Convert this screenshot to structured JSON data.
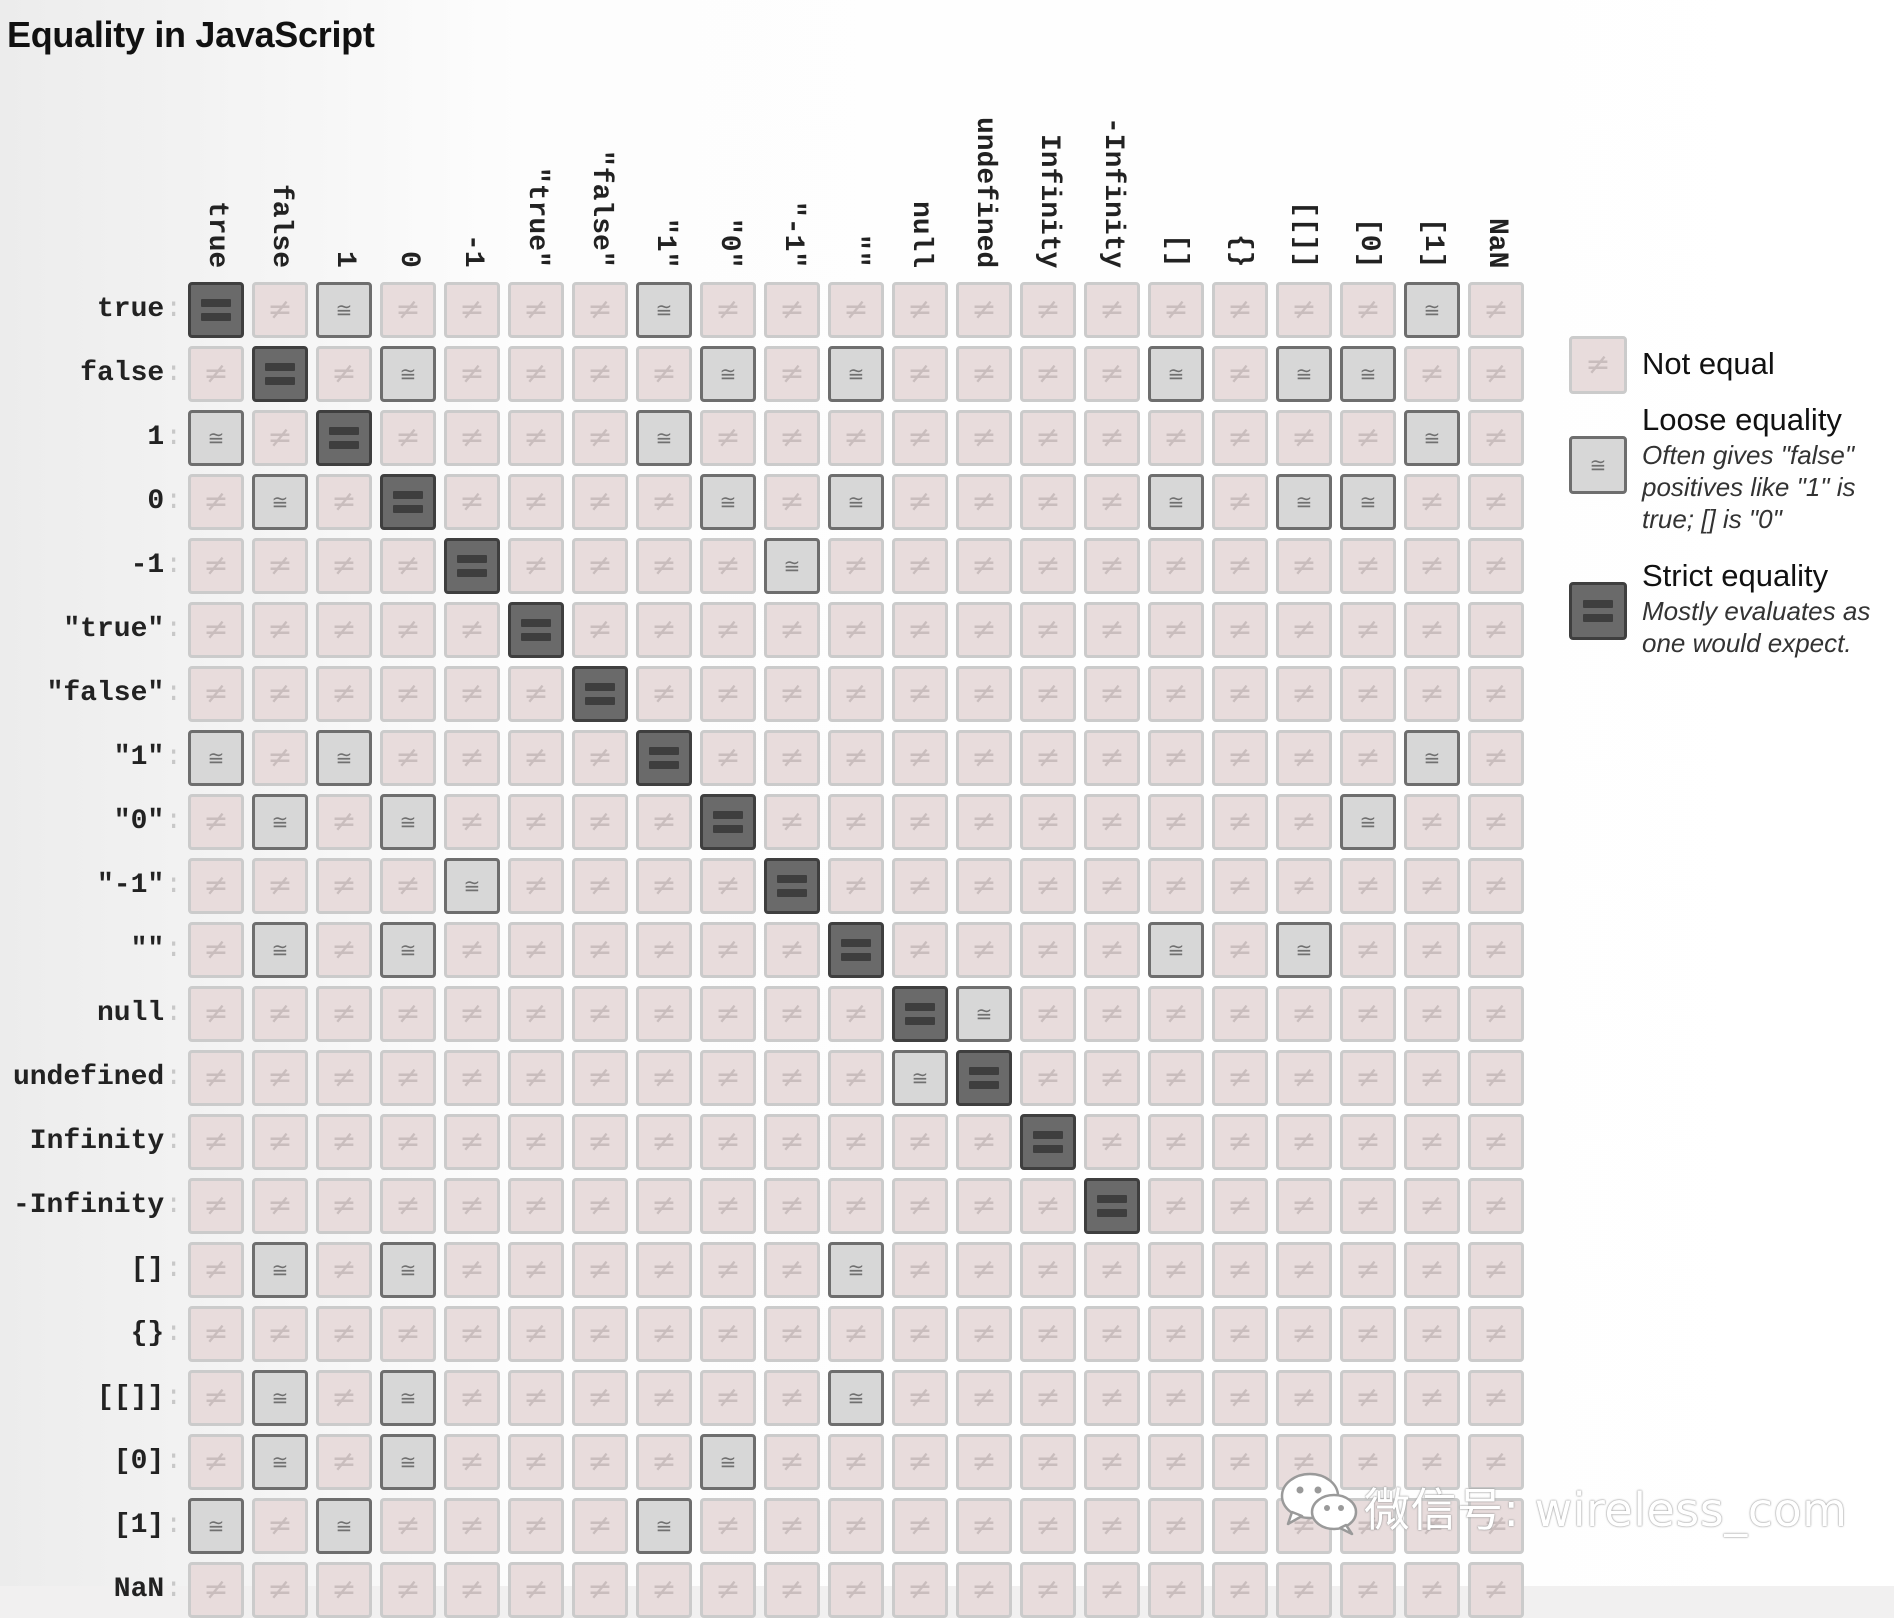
{
  "title": "Equality in JavaScript",
  "chart_data": {
    "type": "heatmap",
    "title": "Equality in JavaScript",
    "labels": [
      "true",
      "false",
      "1",
      "0",
      "-1",
      "\"true\"",
      "\"false\"",
      "\"1\"",
      "\"0\"",
      "\"-1\"",
      "\"\"",
      "null",
      "undefined",
      "Infinity",
      "-Infinity",
      "[]",
      "{}",
      "[[]]",
      "[0]",
      "[1]",
      "NaN"
    ],
    "row_labels": [
      "true",
      "false",
      "1",
      "0",
      "-1",
      "\"true\"",
      "\"false\"",
      "\"1\"",
      "\"0\"",
      "\"-1\"",
      "\"\"",
      "null",
      "undefined",
      "Infinity",
      "-Infinity",
      "[]",
      "{}",
      "[[]]",
      "[0]",
      "[1]",
      "NaN"
    ],
    "legend": "right",
    "matrix": [
      [
        "strict",
        "neq",
        "loose",
        "neq",
        "neq",
        "neq",
        "neq",
        "loose",
        "neq",
        "neq",
        "neq",
        "neq",
        "neq",
        "neq",
        "neq",
        "neq",
        "neq",
        "neq",
        "neq",
        "loose",
        "neq"
      ],
      [
        "neq",
        "strict",
        "neq",
        "loose",
        "neq",
        "neq",
        "neq",
        "neq",
        "loose",
        "neq",
        "loose",
        "neq",
        "neq",
        "neq",
        "neq",
        "loose",
        "neq",
        "loose",
        "loose",
        "neq",
        "neq"
      ],
      [
        "loose",
        "neq",
        "strict",
        "neq",
        "neq",
        "neq",
        "neq",
        "loose",
        "neq",
        "neq",
        "neq",
        "neq",
        "neq",
        "neq",
        "neq",
        "neq",
        "neq",
        "neq",
        "neq",
        "loose",
        "neq"
      ],
      [
        "neq",
        "loose",
        "neq",
        "strict",
        "neq",
        "neq",
        "neq",
        "neq",
        "loose",
        "neq",
        "loose",
        "neq",
        "neq",
        "neq",
        "neq",
        "loose",
        "neq",
        "loose",
        "loose",
        "neq",
        "neq"
      ],
      [
        "neq",
        "neq",
        "neq",
        "neq",
        "strict",
        "neq",
        "neq",
        "neq",
        "neq",
        "loose",
        "neq",
        "neq",
        "neq",
        "neq",
        "neq",
        "neq",
        "neq",
        "neq",
        "neq",
        "neq",
        "neq"
      ],
      [
        "neq",
        "neq",
        "neq",
        "neq",
        "neq",
        "strict",
        "neq",
        "neq",
        "neq",
        "neq",
        "neq",
        "neq",
        "neq",
        "neq",
        "neq",
        "neq",
        "neq",
        "neq",
        "neq",
        "neq",
        "neq"
      ],
      [
        "neq",
        "neq",
        "neq",
        "neq",
        "neq",
        "neq",
        "strict",
        "neq",
        "neq",
        "neq",
        "neq",
        "neq",
        "neq",
        "neq",
        "neq",
        "neq",
        "neq",
        "neq",
        "neq",
        "neq",
        "neq"
      ],
      [
        "loose",
        "neq",
        "loose",
        "neq",
        "neq",
        "neq",
        "neq",
        "strict",
        "neq",
        "neq",
        "neq",
        "neq",
        "neq",
        "neq",
        "neq",
        "neq",
        "neq",
        "neq",
        "neq",
        "loose",
        "neq"
      ],
      [
        "neq",
        "loose",
        "neq",
        "loose",
        "neq",
        "neq",
        "neq",
        "neq",
        "strict",
        "neq",
        "neq",
        "neq",
        "neq",
        "neq",
        "neq",
        "neq",
        "neq",
        "neq",
        "loose",
        "neq",
        "neq"
      ],
      [
        "neq",
        "neq",
        "neq",
        "neq",
        "loose",
        "neq",
        "neq",
        "neq",
        "neq",
        "strict",
        "neq",
        "neq",
        "neq",
        "neq",
        "neq",
        "neq",
        "neq",
        "neq",
        "neq",
        "neq",
        "neq"
      ],
      [
        "neq",
        "loose",
        "neq",
        "loose",
        "neq",
        "neq",
        "neq",
        "neq",
        "neq",
        "neq",
        "strict",
        "neq",
        "neq",
        "neq",
        "neq",
        "loose",
        "neq",
        "loose",
        "neq",
        "neq",
        "neq"
      ],
      [
        "neq",
        "neq",
        "neq",
        "neq",
        "neq",
        "neq",
        "neq",
        "neq",
        "neq",
        "neq",
        "neq",
        "strict",
        "loose",
        "neq",
        "neq",
        "neq",
        "neq",
        "neq",
        "neq",
        "neq",
        "neq"
      ],
      [
        "neq",
        "neq",
        "neq",
        "neq",
        "neq",
        "neq",
        "neq",
        "neq",
        "neq",
        "neq",
        "neq",
        "loose",
        "strict",
        "neq",
        "neq",
        "neq",
        "neq",
        "neq",
        "neq",
        "neq",
        "neq"
      ],
      [
        "neq",
        "neq",
        "neq",
        "neq",
        "neq",
        "neq",
        "neq",
        "neq",
        "neq",
        "neq",
        "neq",
        "neq",
        "neq",
        "strict",
        "neq",
        "neq",
        "neq",
        "neq",
        "neq",
        "neq",
        "neq"
      ],
      [
        "neq",
        "neq",
        "neq",
        "neq",
        "neq",
        "neq",
        "neq",
        "neq",
        "neq",
        "neq",
        "neq",
        "neq",
        "neq",
        "neq",
        "strict",
        "neq",
        "neq",
        "neq",
        "neq",
        "neq",
        "neq"
      ],
      [
        "neq",
        "loose",
        "neq",
        "loose",
        "neq",
        "neq",
        "neq",
        "neq",
        "neq",
        "neq",
        "loose",
        "neq",
        "neq",
        "neq",
        "neq",
        "neq",
        "neq",
        "neq",
        "neq",
        "neq",
        "neq"
      ],
      [
        "neq",
        "neq",
        "neq",
        "neq",
        "neq",
        "neq",
        "neq",
        "neq",
        "neq",
        "neq",
        "neq",
        "neq",
        "neq",
        "neq",
        "neq",
        "neq",
        "neq",
        "neq",
        "neq",
        "neq",
        "neq"
      ],
      [
        "neq",
        "loose",
        "neq",
        "loose",
        "neq",
        "neq",
        "neq",
        "neq",
        "neq",
        "neq",
        "loose",
        "neq",
        "neq",
        "neq",
        "neq",
        "neq",
        "neq",
        "neq",
        "neq",
        "neq",
        "neq"
      ],
      [
        "neq",
        "loose",
        "neq",
        "loose",
        "neq",
        "neq",
        "neq",
        "neq",
        "loose",
        "neq",
        "neq",
        "neq",
        "neq",
        "neq",
        "neq",
        "neq",
        "neq",
        "neq",
        "neq",
        "neq",
        "neq"
      ],
      [
        "loose",
        "neq",
        "loose",
        "neq",
        "neq",
        "neq",
        "neq",
        "loose",
        "neq",
        "neq",
        "neq",
        "neq",
        "neq",
        "neq",
        "neq",
        "neq",
        "neq",
        "neq",
        "neq",
        "neq",
        "neq"
      ],
      [
        "neq",
        "neq",
        "neq",
        "neq",
        "neq",
        "neq",
        "neq",
        "neq",
        "neq",
        "neq",
        "neq",
        "neq",
        "neq",
        "neq",
        "neq",
        "neq",
        "neq",
        "neq",
        "neq",
        "neq",
        "neq"
      ]
    ],
    "symbols": {
      "neq": "≠",
      "loose": "≅"
    },
    "colors": {
      "neq_fill": "#e8dcdc",
      "loose_fill": "#d7d7d7",
      "strict_fill": "#6a6a6a"
    }
  },
  "legend": {
    "items": [
      {
        "key": "neq",
        "title": "Not equal",
        "description": ""
      },
      {
        "key": "loose",
        "title": "Loose equality",
        "description": "Often gives \"false\" positives like \"1\" is true; [] is \"0\""
      },
      {
        "key": "strict",
        "title": "Strict equality",
        "description": "Mostly evaluates as one would expect."
      }
    ]
  },
  "watermark": {
    "text": "微信号: wireless_com",
    "icon": "wechat-logo-icon"
  }
}
